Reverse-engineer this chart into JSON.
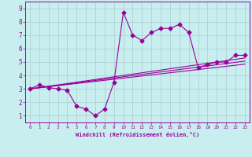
{
  "title": "",
  "xlabel": "Windchill (Refroidissement éolien,°C)",
  "background_color": "#c8eef0",
  "line_color": "#990099",
  "grid_color": "#aacccc",
  "x_values": [
    0,
    1,
    2,
    3,
    4,
    5,
    6,
    7,
    8,
    9,
    10,
    11,
    12,
    13,
    14,
    15,
    16,
    17,
    18,
    19,
    20,
    21,
    22,
    23
  ],
  "line1": [
    3.0,
    3.3,
    3.1,
    3.0,
    2.9,
    1.7,
    1.5,
    1.0,
    1.5,
    3.5,
    8.7,
    7.0,
    6.6,
    7.2,
    7.5,
    7.5,
    7.8,
    7.2,
    4.6,
    4.8,
    5.0,
    5.0,
    5.5,
    5.5
  ],
  "line2": [
    3.0,
    3.08,
    3.16,
    3.24,
    3.32,
    3.4,
    3.48,
    3.56,
    3.64,
    3.72,
    3.8,
    3.88,
    3.96,
    4.04,
    4.12,
    4.2,
    4.28,
    4.36,
    4.44,
    4.52,
    4.6,
    4.68,
    4.76,
    4.84
  ],
  "line3": [
    3.0,
    3.09,
    3.18,
    3.27,
    3.36,
    3.45,
    3.54,
    3.63,
    3.72,
    3.81,
    3.9,
    3.99,
    4.08,
    4.17,
    4.26,
    4.35,
    4.44,
    4.53,
    4.62,
    4.71,
    4.8,
    4.89,
    4.98,
    5.07
  ],
  "line4": [
    3.0,
    3.1,
    3.2,
    3.3,
    3.4,
    3.5,
    3.6,
    3.7,
    3.8,
    3.9,
    4.0,
    4.1,
    4.2,
    4.3,
    4.4,
    4.5,
    4.6,
    4.7,
    4.8,
    4.9,
    5.0,
    5.1,
    5.2,
    5.3
  ],
  "ylim": [
    0.5,
    9.5
  ],
  "xlim": [
    -0.5,
    23.5
  ],
  "yticks": [
    1,
    2,
    3,
    4,
    5,
    6,
    7,
    8,
    9
  ],
  "xticks": [
    0,
    1,
    2,
    3,
    4,
    5,
    6,
    7,
    8,
    9,
    10,
    11,
    12,
    13,
    14,
    15,
    16,
    17,
    18,
    19,
    20,
    21,
    22,
    23
  ]
}
